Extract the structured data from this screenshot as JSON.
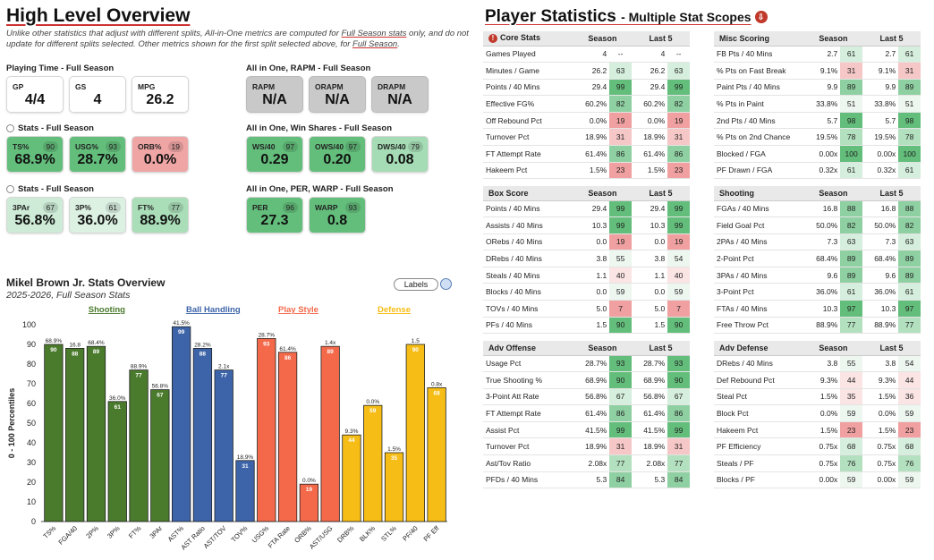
{
  "left": {
    "title": "High Level Overview",
    "note_parts": [
      "Unlike other statistics that adjust with different splits, All-in-One metrics are computed for ",
      "Full Season stats",
      " only, and do not update for different splits selected. Other metrics shown for the first split selected above, for ",
      "Full Season",
      "."
    ],
    "playing_time": {
      "header": "Playing Time - Full Season",
      "cards": [
        {
          "label": "GP",
          "value": "4/4"
        },
        {
          "label": "GS",
          "value": "4"
        },
        {
          "label": "MPG",
          "value": "26.2"
        }
      ]
    },
    "rapm": {
      "header": "All in One, RAPM - Full Season",
      "cards": [
        {
          "label": "RAPM",
          "value": "N/A"
        },
        {
          "label": "ORAPM",
          "value": "N/A"
        },
        {
          "label": "DRAPM",
          "value": "N/A"
        }
      ]
    },
    "stats1": {
      "header": "Stats - Full Season",
      "cards": [
        {
          "label": "TS%",
          "value": "68.9%",
          "pct": "90",
          "color": "#63be7b"
        },
        {
          "label": "USG%",
          "value": "28.7%",
          "pct": "93",
          "color": "#63be7b"
        },
        {
          "label": "ORB%",
          "value": "0.0%",
          "pct": "19",
          "color": "#f0a5a5"
        }
      ]
    },
    "winshares": {
      "header": "All in One, Win Shares - Full Season",
      "cards": [
        {
          "label": "WS/40",
          "value": "0.29",
          "pct": "97",
          "color": "#63be7b"
        },
        {
          "label": "OWS/40",
          "value": "0.20",
          "pct": "97",
          "color": "#63be7b"
        },
        {
          "label": "DWS/40",
          "value": "0.08",
          "pct": "79",
          "color": "#a5dcb5"
        }
      ]
    },
    "stats2": {
      "header": "Stats - Full Season",
      "cards": [
        {
          "label": "3PAr",
          "value": "56.8%",
          "pct": "67",
          "color": "#cdebd6"
        },
        {
          "label": "3P%",
          "value": "36.0%",
          "pct": "61",
          "color": "#dcf1e2"
        },
        {
          "label": "FT%",
          "value": "88.9%",
          "pct": "77",
          "color": "#aadeb9"
        }
      ]
    },
    "per": {
      "header": "All in One, PER, WARP - Full Season",
      "cards": [
        {
          "label": "PER",
          "value": "27.3",
          "pct": "96",
          "color": "#63be7b"
        },
        {
          "label": "WARP",
          "value": "0.8",
          "pct": "93",
          "color": "#63be7b"
        }
      ]
    }
  },
  "chart_data": {
    "type": "bar",
    "title": "Mikel Brown Jr. Stats Overview",
    "subtitle": "2025-2026, Full Season Stats",
    "labels_button": "Labels",
    "ylabel": "0 - 100 Percentiles",
    "ylim": [
      0,
      100
    ],
    "yticks": [
      0,
      10,
      20,
      30,
      40,
      50,
      60,
      70,
      80,
      90,
      100
    ],
    "groups": [
      {
        "name": "Shooting",
        "color": "#4a7a2c",
        "start": 0,
        "count": 6
      },
      {
        "name": "Ball Handling",
        "color": "#3d64a8",
        "start": 6,
        "count": 4
      },
      {
        "name": "Play Style",
        "color": "#f4694a",
        "start": 10,
        "count": 4
      },
      {
        "name": "Defense",
        "color": "#f6bd16",
        "start": 14,
        "count": 5
      }
    ],
    "categories": [
      "TS%",
      "FGA/40",
      "2P%",
      "3P%",
      "FT%",
      "3PAr",
      "AST%",
      "AST Ratio",
      "AST/TOV",
      "TOV%",
      "USG%",
      "FTA Rate",
      "ORB%",
      "AST/USG",
      "DRB%",
      "BLK%",
      "STL%",
      "PF/40",
      "PF Eff"
    ],
    "values": [
      90,
      88,
      89,
      61,
      77,
      67,
      99,
      88,
      77,
      31,
      93,
      86,
      19,
      89,
      44,
      59,
      35,
      90,
      68
    ],
    "raw": [
      "68.9%",
      "16.8",
      "68.4%",
      "36.0%",
      "88.9%",
      "56.8%",
      "41.5%",
      "28.2%",
      "2.1x",
      "18.9%",
      "28.7%",
      "61.4%",
      "0.0%",
      "1.4x",
      "9.3%",
      "0.0%",
      "1.5%",
      "1.5",
      "0.8x"
    ],
    "bar_colors": [
      "#4a7a2c",
      "#4a7a2c",
      "#4a7a2c",
      "#4a7a2c",
      "#4a7a2c",
      "#4a7a2c",
      "#3d64a8",
      "#3d64a8",
      "#3d64a8",
      "#3d64a8",
      "#f4694a",
      "#f4694a",
      "#f4694a",
      "#f4694a",
      "#f6bd16",
      "#f6bd16",
      "#f6bd16",
      "#f6bd16",
      "#f6bd16"
    ]
  },
  "right": {
    "title": "Player Statistics",
    "subtitle": "- Multiple Stat Scopes",
    "tables": [
      {
        "title": "Core Stats",
        "icon": true,
        "cols": [
          "Season",
          "Last 5"
        ],
        "rows": [
          [
            "Games Played",
            "4",
            "--",
            "4",
            "--"
          ],
          [
            "Minutes / Game",
            "26.2",
            "63",
            "26.2",
            "63"
          ],
          [
            "Points / 40 Mins",
            "29.4",
            "99",
            "29.4",
            "99"
          ],
          [
            "Effective FG%",
            "60.2%",
            "82",
            "60.2%",
            "82"
          ],
          [
            "Off Rebound Pct",
            "0.0%",
            "19",
            "0.0%",
            "19"
          ],
          [
            "Turnover Pct",
            "18.9%",
            "31",
            "18.9%",
            "31"
          ],
          [
            "FT Attempt Rate",
            "61.4%",
            "86",
            "61.4%",
            "86"
          ],
          [
            "Hakeem Pct",
            "1.5%",
            "23",
            "1.5%",
            "23"
          ]
        ]
      },
      {
        "title": "Misc Scoring",
        "cols": [
          "Season",
          "Last 5"
        ],
        "rows": [
          [
            "FB Pts / 40 Mins",
            "2.7",
            "61",
            "2.7",
            "61"
          ],
          [
            "% Pts on Fast Break",
            "9.1%",
            "31",
            "9.1%",
            "31"
          ],
          [
            "Paint Pts / 40 Mins",
            "9.9",
            "89",
            "9.9",
            "89"
          ],
          [
            "% Pts in Paint",
            "33.8%",
            "51",
            "33.8%",
            "51"
          ],
          [
            "2nd Pts / 40 Mins",
            "5.7",
            "98",
            "5.7",
            "98"
          ],
          [
            "% Pts on 2nd Chance",
            "19.5%",
            "78",
            "19.5%",
            "78"
          ],
          [
            "Blocked / FGA",
            "0.00x",
            "100",
            "0.00x",
            "100"
          ],
          [
            "PF Drawn / FGA",
            "0.32x",
            "61",
            "0.32x",
            "61"
          ]
        ]
      },
      {
        "title": "Box Score",
        "cols": [
          "Season",
          "Last 5"
        ],
        "rows": [
          [
            "Points / 40 Mins",
            "29.4",
            "99",
            "29.4",
            "99"
          ],
          [
            "Assists / 40 Mins",
            "10.3",
            "99",
            "10.3",
            "99"
          ],
          [
            "ORebs / 40 Mins",
            "0.0",
            "19",
            "0.0",
            "19"
          ],
          [
            "DRebs / 40 Mins",
            "3.8",
            "55",
            "3.8",
            "54"
          ],
          [
            "Steals / 40 Mins",
            "1.1",
            "40",
            "1.1",
            "40"
          ],
          [
            "Blocks / 40 Mins",
            "0.0",
            "59",
            "0.0",
            "59"
          ],
          [
            "TOVs / 40 Mins",
            "5.0",
            "7",
            "5.0",
            "7"
          ],
          [
            "PFs / 40 Mins",
            "1.5",
            "90",
            "1.5",
            "90"
          ]
        ]
      },
      {
        "title": "Shooting",
        "cols": [
          "Season",
          "Last 5"
        ],
        "rows": [
          [
            "FGAs / 40 Mins",
            "16.8",
            "88",
            "16.8",
            "88"
          ],
          [
            "Field Goal Pct",
            "50.0%",
            "82",
            "50.0%",
            "82"
          ],
          [
            "2PAs / 40 Mins",
            "7.3",
            "63",
            "7.3",
            "63"
          ],
          [
            "2-Point Pct",
            "68.4%",
            "89",
            "68.4%",
            "89"
          ],
          [
            "3PAs / 40 Mins",
            "9.6",
            "89",
            "9.6",
            "89"
          ],
          [
            "3-Point Pct",
            "36.0%",
            "61",
            "36.0%",
            "61"
          ],
          [
            "FTAs / 40 Mins",
            "10.3",
            "97",
            "10.3",
            "97"
          ],
          [
            "Free Throw Pct",
            "88.9%",
            "77",
            "88.9%",
            "77"
          ]
        ]
      },
      {
        "title": "Adv Offense",
        "cols": [
          "Season",
          "Last 5"
        ],
        "rows": [
          [
            "Usage Pct",
            "28.7%",
            "93",
            "28.7%",
            "93"
          ],
          [
            "True Shooting %",
            "68.9%",
            "90",
            "68.9%",
            "90"
          ],
          [
            "3-Point Att Rate",
            "56.8%",
            "67",
            "56.8%",
            "67"
          ],
          [
            "FT Attempt Rate",
            "61.4%",
            "86",
            "61.4%",
            "86"
          ],
          [
            "Assist Pct",
            "41.5%",
            "99",
            "41.5%",
            "99"
          ],
          [
            "Turnover Pct",
            "18.9%",
            "31",
            "18.9%",
            "31"
          ],
          [
            "Ast/Tov Ratio",
            "2.08x",
            "77",
            "2.08x",
            "77"
          ],
          [
            "PFDs / 40 Mins",
            "5.3",
            "84",
            "5.3",
            "84"
          ]
        ]
      },
      {
        "title": "Adv Defense",
        "cols": [
          "Season",
          "Last 5"
        ],
        "rows": [
          [
            "DRebs / 40 Mins",
            "3.8",
            "55",
            "3.8",
            "54"
          ],
          [
            "Def Rebound Pct",
            "9.3%",
            "44",
            "9.3%",
            "44"
          ],
          [
            "Steal Pct",
            "1.5%",
            "35",
            "1.5%",
            "36"
          ],
          [
            "Block Pct",
            "0.0%",
            "59",
            "0.0%",
            "59"
          ],
          [
            "Hakeem Pct",
            "1.5%",
            "23",
            "1.5%",
            "23"
          ],
          [
            "PF Efficiency",
            "0.75x",
            "68",
            "0.75x",
            "68"
          ],
          [
            "Steals / PF",
            "0.75x",
            "76",
            "0.75x",
            "76"
          ],
          [
            "Blocks / PF",
            "0.00x",
            "59",
            "0.00x",
            "59"
          ]
        ]
      }
    ]
  }
}
